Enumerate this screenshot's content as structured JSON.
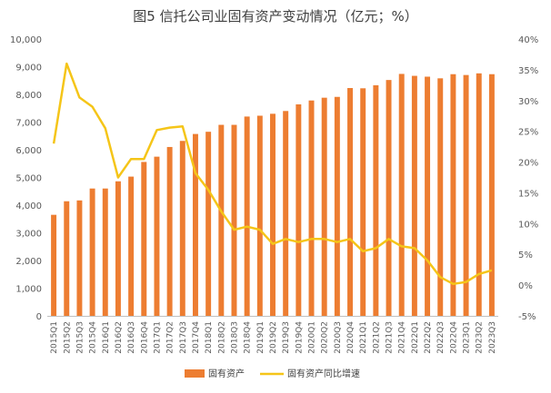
{
  "chart_data": {
    "type": "bar+line",
    "title": "图5 信托公司业固有资产变动情况（亿元；%）",
    "categories": [
      "2015Q1",
      "2015Q2",
      "2015Q3",
      "2015Q4",
      "2016Q1",
      "2016Q2",
      "2016Q3",
      "2016Q4",
      "2017Q1",
      "2017Q2",
      "2017Q3",
      "2017Q4",
      "2018Q1",
      "2018Q2",
      "2018Q3",
      "2018Q4",
      "2019Q1",
      "2019Q2",
      "2019Q3",
      "2019Q4",
      "2020Q1",
      "2020Q2",
      "2020Q3",
      "2020Q4",
      "2021Q1",
      "2021Q2",
      "2021Q3",
      "2021Q4",
      "2022Q1",
      "2022Q2",
      "2022Q3",
      "2022Q4",
      "2023Q1",
      "2023Q2",
      "2023Q3"
    ],
    "series": [
      {
        "name": "固有资产",
        "type": "bar",
        "axis": "left",
        "color": "#ED7D31",
        "values": [
          3650,
          4140,
          4170,
          4600,
          4600,
          4860,
          5030,
          5560,
          5750,
          6100,
          6320,
          6570,
          6650,
          6900,
          6900,
          7200,
          7230,
          7300,
          7400,
          7640,
          7780,
          7880,
          7910,
          8230,
          8220,
          8330,
          8520,
          8740,
          8670,
          8640,
          8580,
          8730,
          8700,
          8760,
          8730
        ]
      },
      {
        "name": "固有资产同比增速",
        "type": "line",
        "axis": "right",
        "color": "#F5C518",
        "values": [
          23,
          36,
          30.5,
          29,
          25.5,
          17.5,
          20.5,
          20.5,
          25.2,
          25.6,
          25.8,
          18.2,
          15.5,
          12,
          9,
          9.5,
          9,
          6.7,
          7.5,
          7,
          7.5,
          7.5,
          7,
          7.5,
          5.5,
          6,
          7.5,
          6.3,
          6,
          4,
          1.3,
          0.2,
          0.5,
          1.8,
          2.4
        ]
      }
    ],
    "y_left": {
      "min": 0,
      "max": 10000,
      "step": 1000,
      "ticks": [
        "0",
        "1,000",
        "2,000",
        "3,000",
        "4,000",
        "5,000",
        "6,000",
        "7,000",
        "8,000",
        "9,000",
        "10,000"
      ]
    },
    "y_right": {
      "min": -5,
      "max": 40,
      "step": 5,
      "ticks": [
        "-5%",
        "0%",
        "5%",
        "10%",
        "15%",
        "20%",
        "25%",
        "30%",
        "35%",
        "40%"
      ]
    },
    "legend": "bottom",
    "grid": false
  }
}
